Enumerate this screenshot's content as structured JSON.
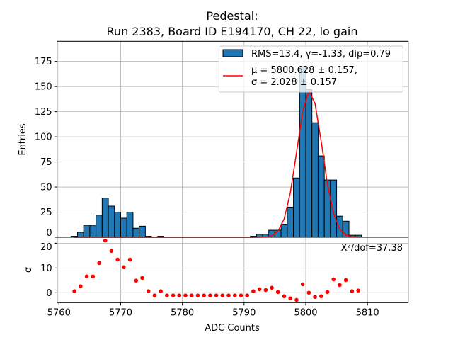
{
  "chart_data": [
    {
      "type": "bar",
      "title": [
        "Pedestal:",
        "Run 2383, Board ID E194170, CH 22, lo gain"
      ],
      "ylabel": "Entries",
      "xlabel": "ADC Counts",
      "xlim": [
        5759.7,
        5816.6
      ],
      "ylim": [
        0,
        195
      ],
      "grid": true,
      "xticks": [
        5760,
        5770,
        5780,
        5790,
        5800,
        5810
      ],
      "yticks": [
        0,
        25,
        50,
        75,
        100,
        125,
        150,
        175
      ],
      "bin_width": 1,
      "bin_centers_start": 5762.5,
      "counts": [
        1,
        5,
        12,
        12,
        22,
        39,
        31,
        25,
        19,
        25,
        9,
        11,
        1,
        0,
        1,
        0,
        0,
        0,
        0,
        0,
        0,
        0,
        0,
        0,
        0,
        0,
        0,
        0,
        0,
        1,
        3,
        3,
        7,
        7,
        13,
        30,
        59,
        170,
        147,
        114,
        81,
        57,
        57,
        21,
        16,
        2,
        2
      ],
      "fit": {
        "type": "gaussian",
        "mu": 5800.628,
        "sigma": 2.028,
        "amplitude": 146
      },
      "colors": {
        "bars": "#1f77b4",
        "fit": "#ff0000"
      },
      "legend": {
        "placement": "top-right",
        "entries": [
          "RMS=13.4, γ=-1.33, dip=0.79",
          "μ = 5800.628 ± 0.157,",
          "σ = 2.028 ± 0.157"
        ]
      }
    },
    {
      "type": "scatter",
      "ylabel": "σ",
      "xlabel": "ADC Counts",
      "ylim": [
        -4,
        22.4
      ],
      "yticks": [
        0,
        10,
        20
      ],
      "annotation": "X²/dof=37.38",
      "residuals": [
        0.6,
        2.6,
        6.6,
        6.6,
        12.0,
        21.1,
        16.9,
        13.4,
        10.3,
        13.4,
        4.9,
        6.0,
        0.6,
        -1.1,
        0.6,
        -1.1,
        -1.1,
        -1.1,
        -1.1,
        -1.1,
        -1.1,
        -1.1,
        -1.1,
        -1.1,
        -1.1,
        -1.1,
        -1.1,
        -1.1,
        -1.1,
        0.6,
        1.4,
        1.1,
        2.0,
        0.3,
        -1.4,
        -2.3,
        -2.9,
        3.4,
        0,
        -1.7,
        -1.4,
        0.3,
        5.4,
        3.1,
        5.1,
        0.6,
        0.9
      ],
      "colors": {
        "points": "#ff0000"
      }
    }
  ]
}
